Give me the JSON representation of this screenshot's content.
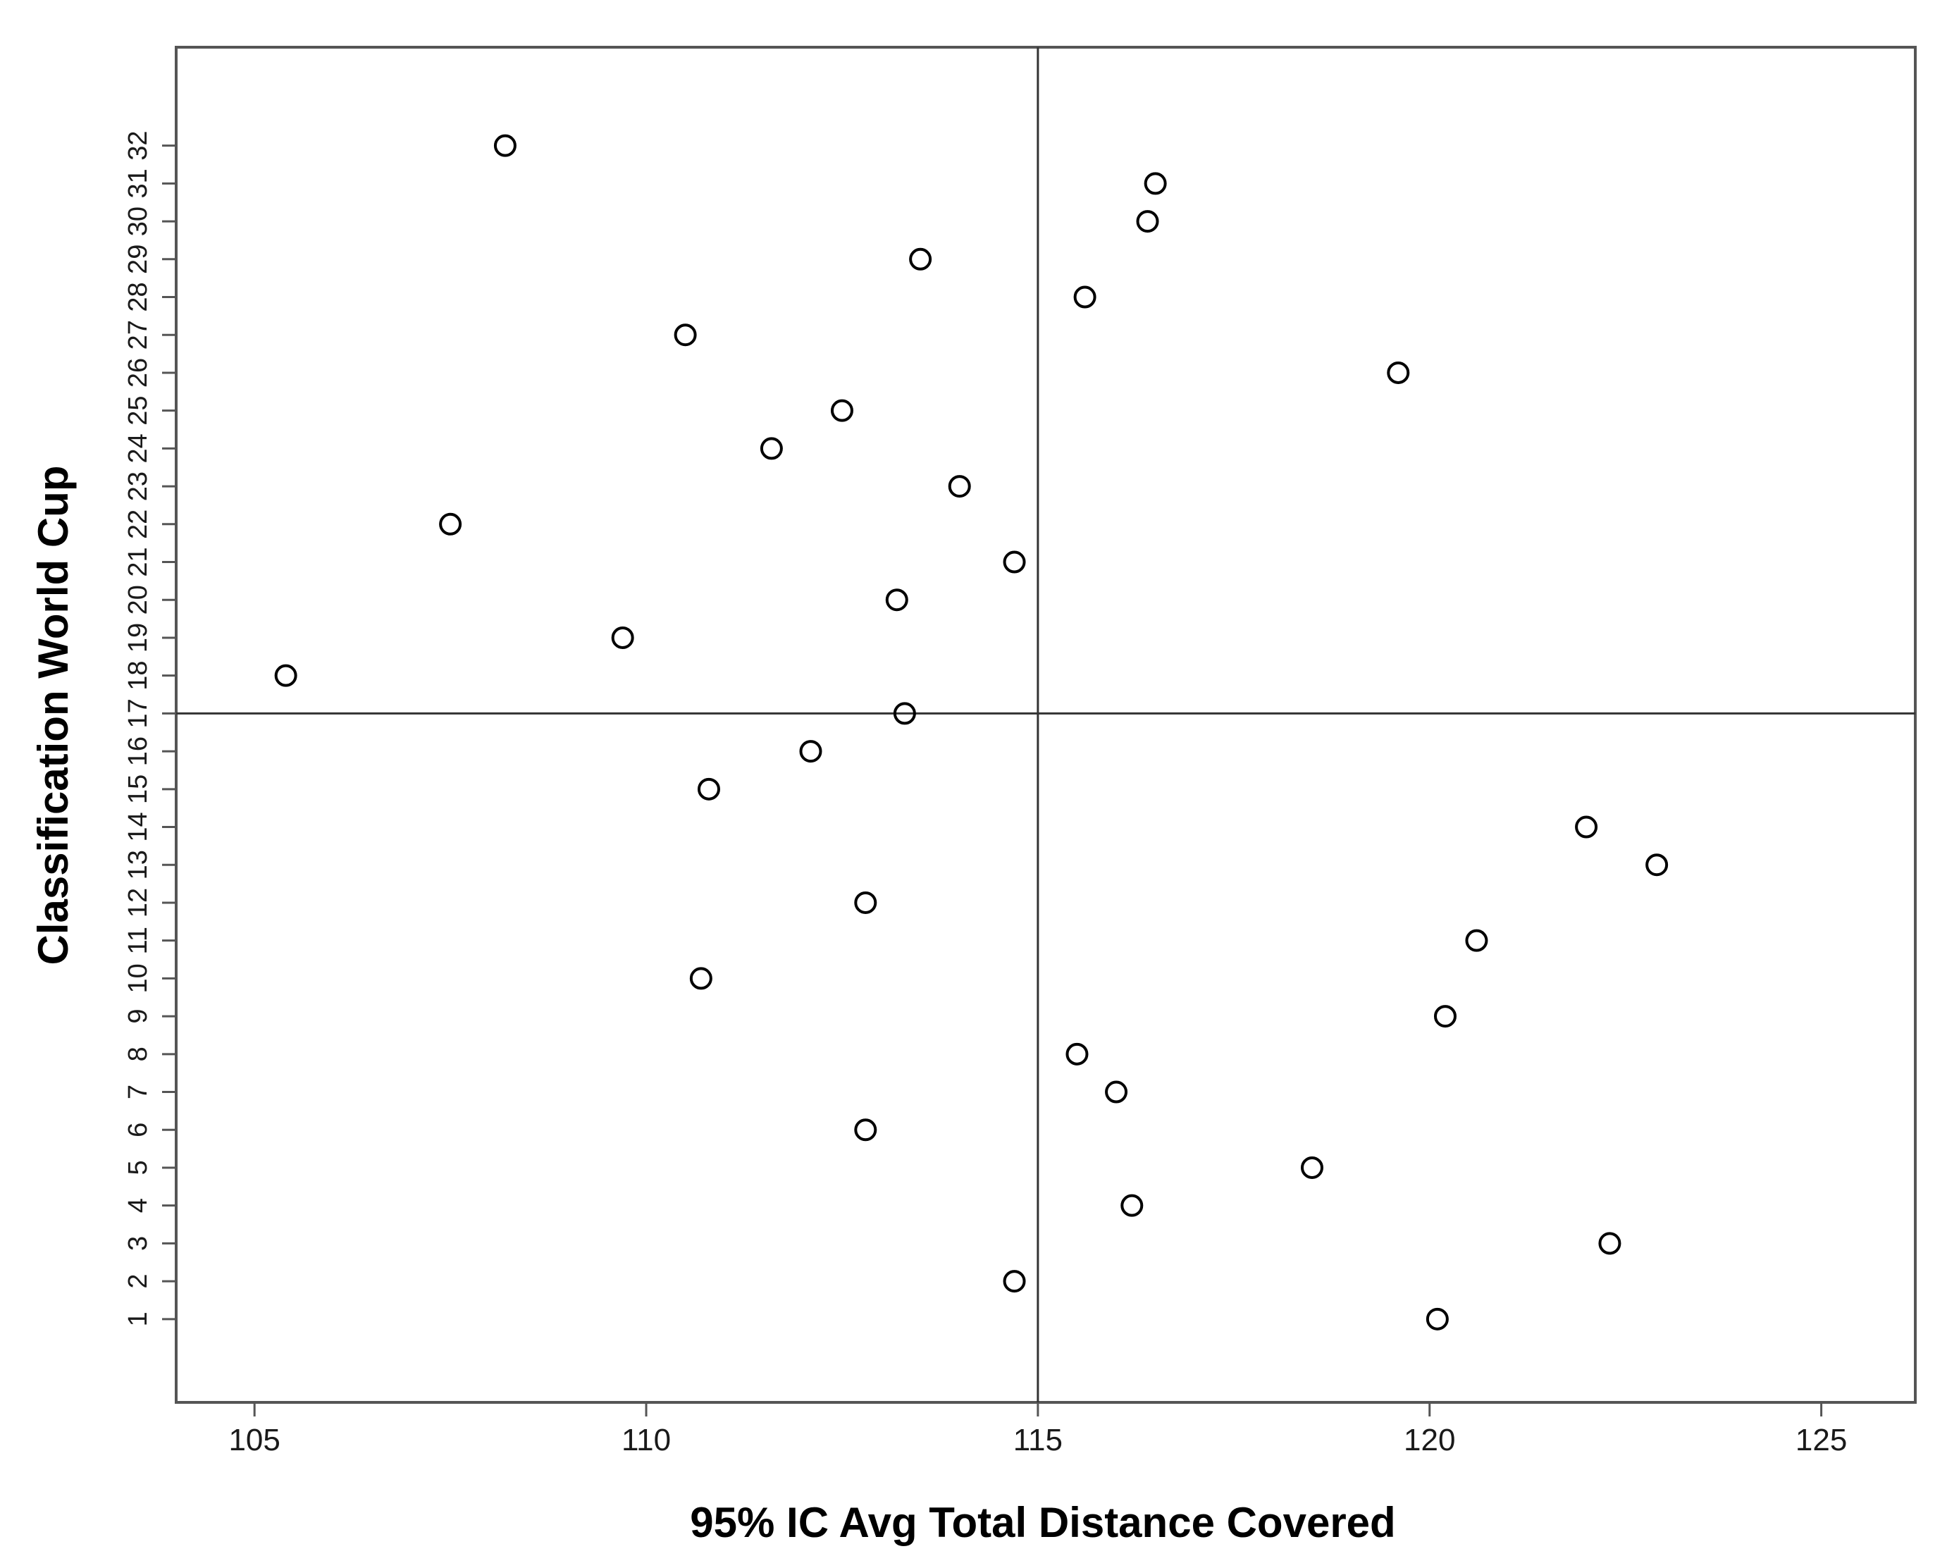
{
  "chart_data": {
    "type": "scatter",
    "title": "",
    "xlabel": "95% IC Avg Total Distance Covered",
    "ylabel": "Classification World Cup",
    "xlim": [
      104,
      126.2
    ],
    "ylim": [
      -1.2,
      34.6
    ],
    "x_ticks": [
      "105",
      "110",
      "115",
      "120",
      "125"
    ],
    "y_ticks": [
      "1",
      "2",
      "3",
      "4",
      "5",
      "6",
      "7",
      "8",
      "9",
      "10",
      "11",
      "12",
      "13",
      "14",
      "15",
      "16",
      "17",
      "18",
      "19",
      "20",
      "21",
      "22",
      "23",
      "24",
      "25",
      "26",
      "27",
      "28",
      "29",
      "30",
      "31",
      "32"
    ],
    "reference_lines": {
      "x": 115,
      "y": 17
    },
    "grid": false,
    "legend": "none",
    "marker": "open-circle",
    "colors": {
      "axis": "#555555",
      "marker_stroke": "#000000",
      "reference_line": "#333333"
    },
    "points": [
      {
        "x": 120.1,
        "y": 1
      },
      {
        "x": 114.7,
        "y": 2
      },
      {
        "x": 122.3,
        "y": 3
      },
      {
        "x": 116.2,
        "y": 4
      },
      {
        "x": 118.5,
        "y": 5
      },
      {
        "x": 112.8,
        "y": 6
      },
      {
        "x": 116.0,
        "y": 7
      },
      {
        "x": 115.5,
        "y": 8
      },
      {
        "x": 120.2,
        "y": 9
      },
      {
        "x": 110.7,
        "y": 10
      },
      {
        "x": 120.6,
        "y": 11
      },
      {
        "x": 112.8,
        "y": 12
      },
      {
        "x": 122.9,
        "y": 13
      },
      {
        "x": 122.0,
        "y": 14
      },
      {
        "x": 110.8,
        "y": 15
      },
      {
        "x": 112.1,
        "y": 16
      },
      {
        "x": 113.3,
        "y": 17
      },
      {
        "x": 105.4,
        "y": 18
      },
      {
        "x": 109.7,
        "y": 19
      },
      {
        "x": 113.2,
        "y": 20
      },
      {
        "x": 114.7,
        "y": 21
      },
      {
        "x": 107.5,
        "y": 22
      },
      {
        "x": 114.0,
        "y": 23
      },
      {
        "x": 111.6,
        "y": 24
      },
      {
        "x": 112.5,
        "y": 25
      },
      {
        "x": 119.6,
        "y": 26
      },
      {
        "x": 110.5,
        "y": 27
      },
      {
        "x": 115.6,
        "y": 28
      },
      {
        "x": 113.5,
        "y": 29
      },
      {
        "x": 116.4,
        "y": 30
      },
      {
        "x": 116.5,
        "y": 31
      },
      {
        "x": 108.2,
        "y": 32
      }
    ]
  }
}
